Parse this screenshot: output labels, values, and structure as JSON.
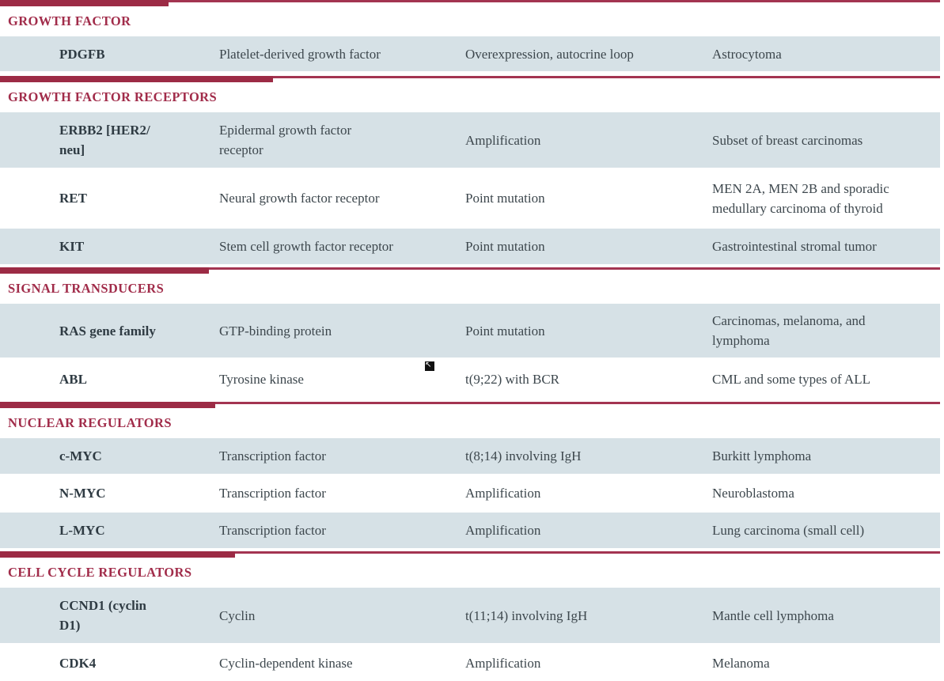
{
  "document": {
    "kind": "oncogene-table",
    "colors": {
      "section_bar": "#9c2b45",
      "section_header_text": "#a12c4a",
      "row_shaded": "#d6e1e6",
      "row_plain": "#ffffff",
      "body_text": "#3d474d"
    },
    "cursor_icon": "↖"
  },
  "sections": [
    {
      "title": "GROWTH FACTOR",
      "rows": [
        {
          "gene": "PDGFB",
          "function": "Platelet-derived growth factor",
          "mechanism": "Overexpression, autocrine loop",
          "tumor": "Astrocytoma"
        }
      ]
    },
    {
      "title": "GROWTH FACTOR RECEPTORS",
      "rows": [
        {
          "gene": "ERBB2 [HER2/\nneu]",
          "function": "Epidermal growth factor\nreceptor",
          "mechanism": "Amplification",
          "tumor": "Subset of breast carcinomas"
        },
        {
          "gene": "RET",
          "function": "Neural growth factor receptor",
          "mechanism": "Point mutation",
          "tumor": "MEN 2A, MEN 2B and sporadic\nmedullary carcinoma of thyroid"
        },
        {
          "gene": "KIT",
          "function": "Stem cell growth factor receptor",
          "mechanism": "Point mutation",
          "tumor": "Gastrointestinal stromal tumor"
        }
      ]
    },
    {
      "title": "SIGNAL TRANSDUCERS",
      "rows": [
        {
          "gene": "RAS gene family",
          "function": "GTP-binding protein",
          "mechanism": "Point mutation",
          "tumor": "Carcinomas, melanoma, and\nlymphoma"
        },
        {
          "gene": "ABL",
          "function": "Tyrosine kinase",
          "mechanism": "t(9;22) with BCR",
          "tumor": "CML and some types of ALL"
        }
      ]
    },
    {
      "title": "NUCLEAR REGULATORS",
      "rows": [
        {
          "gene": "c-MYC",
          "function": "Transcription factor",
          "mechanism": "t(8;14) involving IgH",
          "tumor": "Burkitt lymphoma"
        },
        {
          "gene": "N-MYC",
          "function": "Transcription factor",
          "mechanism": "Amplification",
          "tumor": "Neuroblastoma"
        },
        {
          "gene": "L-MYC",
          "function": "Transcription factor",
          "mechanism": "Amplification",
          "tumor": "Lung carcinoma (small cell)"
        }
      ]
    },
    {
      "title": "CELL CYCLE REGULATORS",
      "rows": [
        {
          "gene": "CCND1 (cyclin\nD1)",
          "function": "Cyclin",
          "mechanism": "t(11;14) involving IgH",
          "tumor": "Mantle cell lymphoma"
        },
        {
          "gene": "CDK4",
          "function": "Cyclin-dependent kinase",
          "mechanism": "Amplification",
          "tumor": "Melanoma"
        }
      ]
    }
  ]
}
